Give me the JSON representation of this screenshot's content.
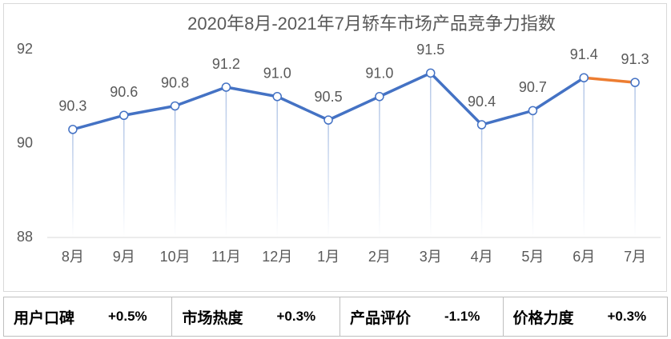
{
  "chart_data": {
    "type": "line",
    "title": "2020年8月-2021年7月轿车市场产品竞争力指数",
    "categories": [
      "8月",
      "9月",
      "10月",
      "11月",
      "12月",
      "1月",
      "2月",
      "3月",
      "4月",
      "5月",
      "6月",
      "7月"
    ],
    "series": [
      {
        "values": [
          90.3,
          90.6,
          90.8,
          91.2,
          91.0,
          90.5,
          91.0,
          91.5,
          90.4,
          90.7,
          91.4,
          91.3
        ]
      }
    ],
    "ylim": [
      88,
      92
    ],
    "yticks": [
      88,
      90,
      92
    ],
    "grid": false,
    "legend": "none",
    "data_labels": true,
    "colors": {
      "line": "#4472C4",
      "last_segment": "#ED7D31",
      "marker_fill": "#FFFFFF",
      "drop_line": "#B4C7E7",
      "text": "#595959",
      "axis": "#D9D9D9"
    }
  },
  "summary": [
    {
      "label": "用户口碑",
      "value": "+0.5%"
    },
    {
      "label": "市场热度",
      "value": "+0.3%"
    },
    {
      "label": "产品评价",
      "value": "-1.1%"
    },
    {
      "label": "价格力度",
      "value": "+0.3%"
    }
  ]
}
